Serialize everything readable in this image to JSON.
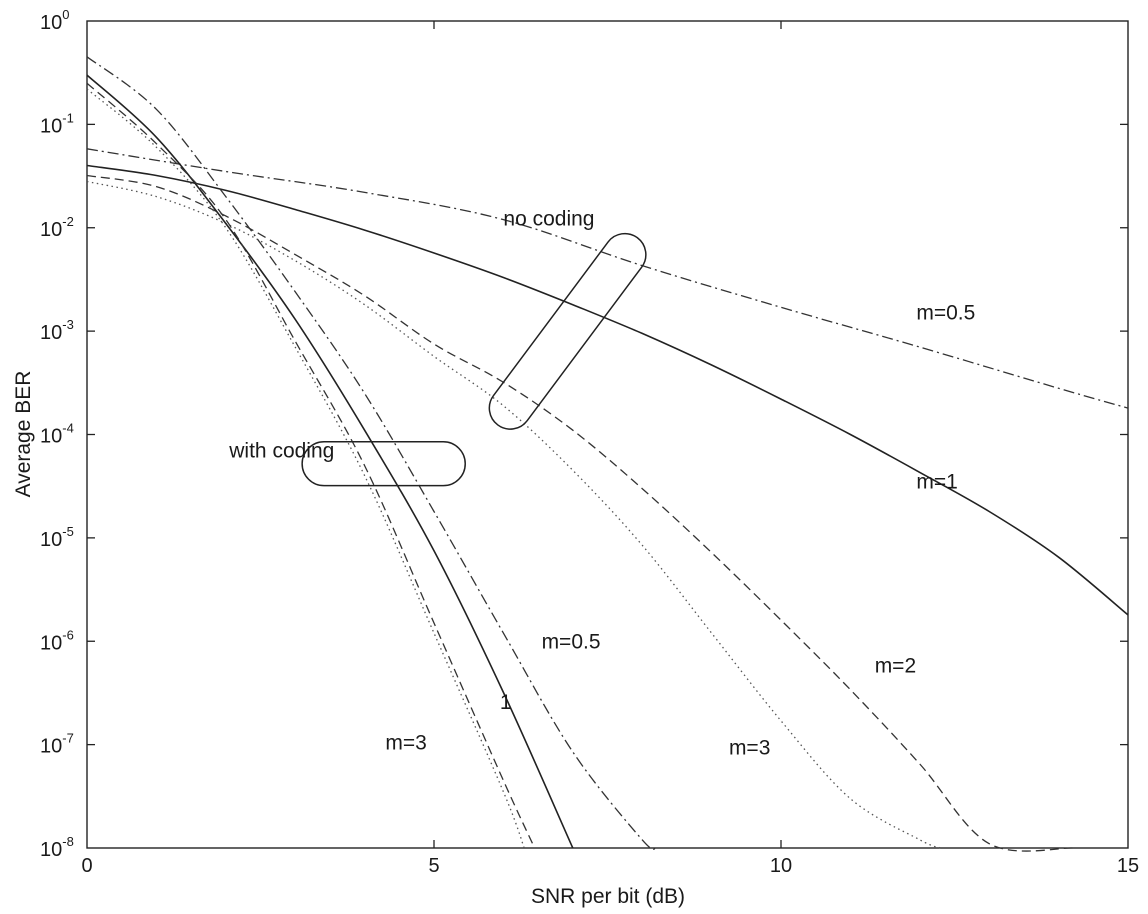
{
  "chart_data": {
    "type": "line",
    "title": "",
    "xlabel": "SNR per bit (dB)",
    "ylabel": "Average BER",
    "xlim": [
      0,
      15
    ],
    "ylim": [
      1e-08,
      1
    ],
    "yscale": "log",
    "grid": false,
    "legend": "none",
    "x_ticks": [
      {
        "value": 0,
        "label": "0"
      },
      {
        "value": 5,
        "label": "5"
      },
      {
        "value": 10,
        "label": "10"
      },
      {
        "value": 15,
        "label": "15"
      }
    ],
    "y_ticks": [
      {
        "value": 1,
        "base": "10",
        "exp": "0"
      },
      {
        "value": 0.1,
        "base": "10",
        "exp": "-1"
      },
      {
        "value": 0.01,
        "base": "10",
        "exp": "-2"
      },
      {
        "value": 0.001,
        "base": "10",
        "exp": "-3"
      },
      {
        "value": 0.0001,
        "base": "10",
        "exp": "-4"
      },
      {
        "value": 1e-05,
        "base": "10",
        "exp": "-5"
      },
      {
        "value": 1e-06,
        "base": "10",
        "exp": "-6"
      },
      {
        "value": 1e-07,
        "base": "10",
        "exp": "-7"
      },
      {
        "value": 1e-08,
        "base": "10",
        "exp": "-8"
      }
    ],
    "series": [
      {
        "style": "dashdot",
        "color": "#333333",
        "x": [
          0,
          2,
          4,
          6,
          8,
          10,
          12,
          14,
          15
        ],
        "y": [
          0.058,
          0.035,
          0.022,
          0.012,
          0.0043,
          0.0017,
          0.0007,
          0.00028,
          0.00018
        ]
      },
      {
        "style": "solid",
        "color": "#222222",
        "x": [
          0,
          1,
          2,
          3,
          4,
          5,
          6,
          7,
          8,
          9,
          10,
          11,
          12,
          13,
          14,
          15
        ],
        "y": [
          0.04,
          0.032,
          0.023,
          0.015,
          0.0095,
          0.0057,
          0.0033,
          0.0018,
          0.00095,
          0.00047,
          0.00022,
          0.0001,
          4.3e-05,
          1.8e-05,
          6.5e-06,
          1.8e-06
        ]
      },
      {
        "style": "dashed",
        "color": "#333333",
        "x": [
          0,
          1,
          2,
          3,
          4,
          5,
          6,
          7,
          8,
          9,
          10,
          11,
          12,
          13,
          14.2
        ],
        "y": [
          0.032,
          0.025,
          0.013,
          0.0055,
          0.0022,
          0.00075,
          0.00032,
          0.00011,
          3e-05,
          7.2e-06,
          1.6e-06,
          3.4e-07,
          6.5e-08,
          1.1e-08,
          1e-08
        ]
      },
      {
        "style": "dotted",
        "color": "#555555",
        "x": [
          0,
          1,
          2,
          3,
          4,
          5,
          6,
          7,
          8,
          9,
          10,
          11,
          12,
          12.3
        ],
        "y": [
          0.028,
          0.02,
          0.011,
          0.0048,
          0.0018,
          0.00057,
          0.00019,
          4.5e-05,
          8.5e-06,
          1.2e-06,
          1.7e-07,
          3e-08,
          1.2e-08,
          1e-08
        ]
      },
      {
        "style": "dashdot",
        "color": "#333333",
        "x": [
          0,
          1,
          2,
          3,
          4,
          5,
          6,
          7,
          8,
          8.2
        ],
        "y": [
          0.45,
          0.14,
          0.02,
          0.0024,
          0.00025,
          1.8e-05,
          1.2e-06,
          8.5e-08,
          1.2e-08,
          1e-08
        ]
      },
      {
        "style": "solid",
        "color": "#222222",
        "x": [
          0,
          1,
          2,
          3,
          4,
          5,
          6,
          7
        ],
        "y": [
          0.3,
          0.075,
          0.011,
          0.0013,
          0.00011,
          7.5e-06,
          3.2e-07,
          1e-08
        ]
      },
      {
        "style": "dashed",
        "color": "#333333",
        "x": [
          0,
          1,
          2,
          3,
          4,
          5,
          6,
          6.45
        ],
        "y": [
          0.25,
          0.065,
          0.012,
          0.0008,
          5e-05,
          1.5e-06,
          4.5e-08,
          1e-08
        ]
      },
      {
        "style": "dotted",
        "color": "#555555",
        "x": [
          0,
          1,
          2,
          3,
          4,
          5,
          6,
          6.3
        ],
        "y": [
          0.22,
          0.06,
          0.01,
          0.0007,
          4e-05,
          1.2e-06,
          3.5e-08,
          1e-08
        ]
      }
    ],
    "annotations": [
      {
        "text": "no coding",
        "x": 6.0,
        "y": 0.0105
      },
      {
        "text": "m=0.5",
        "x": 11.95,
        "y": 0.0013
      },
      {
        "text": "m=1",
        "x": 11.95,
        "y": 3e-05
      },
      {
        "text": "with coding",
        "x": 2.05,
        "y": 6e-05
      },
      {
        "text": "m=0.5",
        "x": 6.55,
        "y": 8.5e-07
      },
      {
        "text": "m=2",
        "x": 11.35,
        "y": 5e-07
      },
      {
        "text": "1",
        "x": 5.95,
        "y": 2.2e-07
      },
      {
        "text": "m=3",
        "x": 4.3,
        "y": 9e-08
      },
      {
        "text": "m=3",
        "x": 9.25,
        "y": 8e-08
      }
    ],
    "callouts": [
      {
        "shape": "capsule",
        "x_range": [
          3.1,
          5.45
        ],
        "y_range": [
          3.2e-05,
          8.5e-05
        ]
      },
      {
        "shape": "capsule",
        "from": {
          "x": 7.75,
          "y": 0.0055
        },
        "to": {
          "x": 6.1,
          "y": 0.00018
        }
      }
    ]
  }
}
